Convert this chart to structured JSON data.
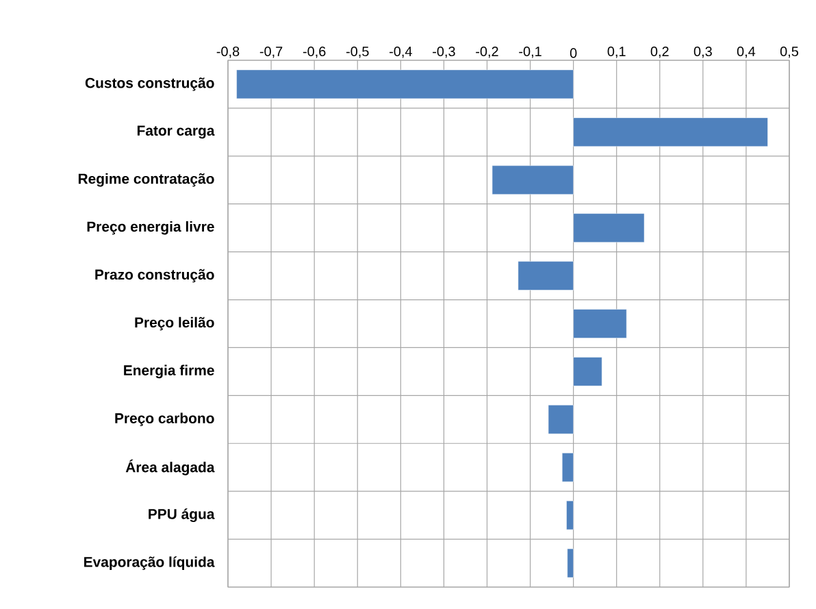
{
  "chart_data": {
    "type": "bar",
    "orientation": "horizontal",
    "categories": [
      "Custos construção",
      "Fator carga",
      "Regime contratação",
      "Preço energia livre",
      "Prazo construção",
      "Preço leilão",
      "Energia firme",
      "Preço carbono",
      "Área alagada",
      "PPU água",
      "Evaporação líquida"
    ],
    "values": [
      -0.78,
      0.45,
      -0.188,
      0.164,
      -0.128,
      0.123,
      0.066,
      -0.058,
      -0.026,
      -0.016,
      -0.014
    ],
    "color": "#4f81bd",
    "xlim": [
      -0.8,
      0.5
    ],
    "xticks": [
      {
        "value": -0.8,
        "label": "-0,8"
      },
      {
        "value": -0.7,
        "label": "-0,7"
      },
      {
        "value": -0.6,
        "label": "-0,6"
      },
      {
        "value": -0.5,
        "label": "-0,5"
      },
      {
        "value": -0.4,
        "label": "-0,4"
      },
      {
        "value": -0.3,
        "label": "-0,3"
      },
      {
        "value": -0.2,
        "label": "-0,2"
      },
      {
        "value": -0.1,
        "label": "-0,1"
      },
      0,
      {
        "value": 0.1,
        "label": "0,1"
      },
      {
        "value": 0.2,
        "label": "0,2"
      },
      {
        "value": 0.3,
        "label": "0,3"
      },
      {
        "value": 0.4,
        "label": "0,4"
      },
      {
        "value": 0.5,
        "label": "0,5"
      }
    ],
    "grid": true
  }
}
